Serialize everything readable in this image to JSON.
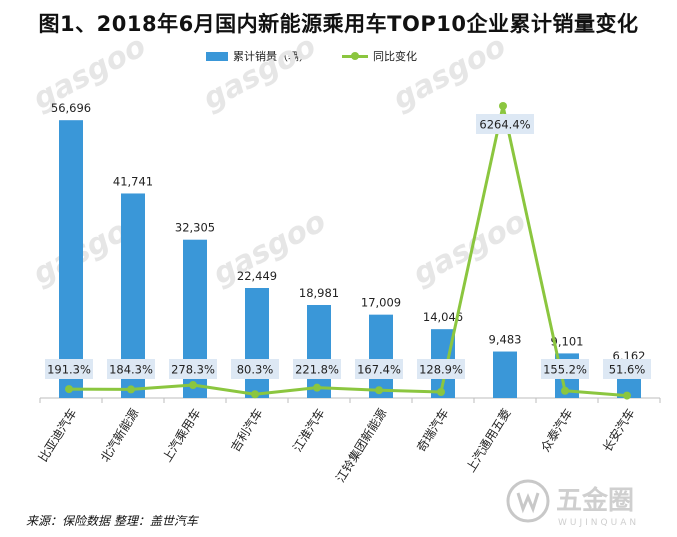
{
  "title": "图1、2018年6月国内新能源乘用车TOP10企业累计销量变化",
  "legend": {
    "bar_label": "累计销量（辆）",
    "line_label": "同比变化"
  },
  "source": "来源：保险数据    整理：盖世汽车",
  "watermark": {
    "text": "gasgoo",
    "brand": "五金圈",
    "brand_sub": "WUJINQUAN"
  },
  "colors": {
    "bar": "#3a97d8",
    "line": "#8bc63f",
    "label_box": "#dde8f4"
  },
  "chart_data": {
    "type": "bar",
    "categories": [
      "比亚迪汽车",
      "北汽新能源",
      "上汽乘用车",
      "吉利汽车",
      "江淮汽车",
      "江铃集团新能源",
      "奇瑞汽车",
      "上汽通用五菱",
      "众泰汽车",
      "长安汽车"
    ],
    "series": [
      {
        "name": "累计销量（辆）",
        "type": "bar",
        "values": [
          56696,
          41741,
          32305,
          22449,
          18981,
          17009,
          14046,
          9483,
          9101,
          6162
        ],
        "labels": [
          "56,696",
          "41,741",
          "32,305",
          "22,449",
          "18,981",
          "17,009",
          "14,046",
          "9,483",
          "9,101",
          "6,162"
        ]
      },
      {
        "name": "同比变化",
        "type": "line",
        "values": [
          191.3,
          184.3,
          278.3,
          80.3,
          221.8,
          167.4,
          128.9,
          6264.4,
          155.2,
          51.6
        ],
        "labels": [
          "191.3%",
          "184.3%",
          "278.3%",
          "80.3%",
          "221.8%",
          "167.4%",
          "128.9%",
          "6264.4%",
          "155.2%",
          "51.6%"
        ]
      }
    ],
    "ylim_bar": [
      0,
      60000
    ],
    "ylim_line": [
      0,
      6500
    ]
  }
}
